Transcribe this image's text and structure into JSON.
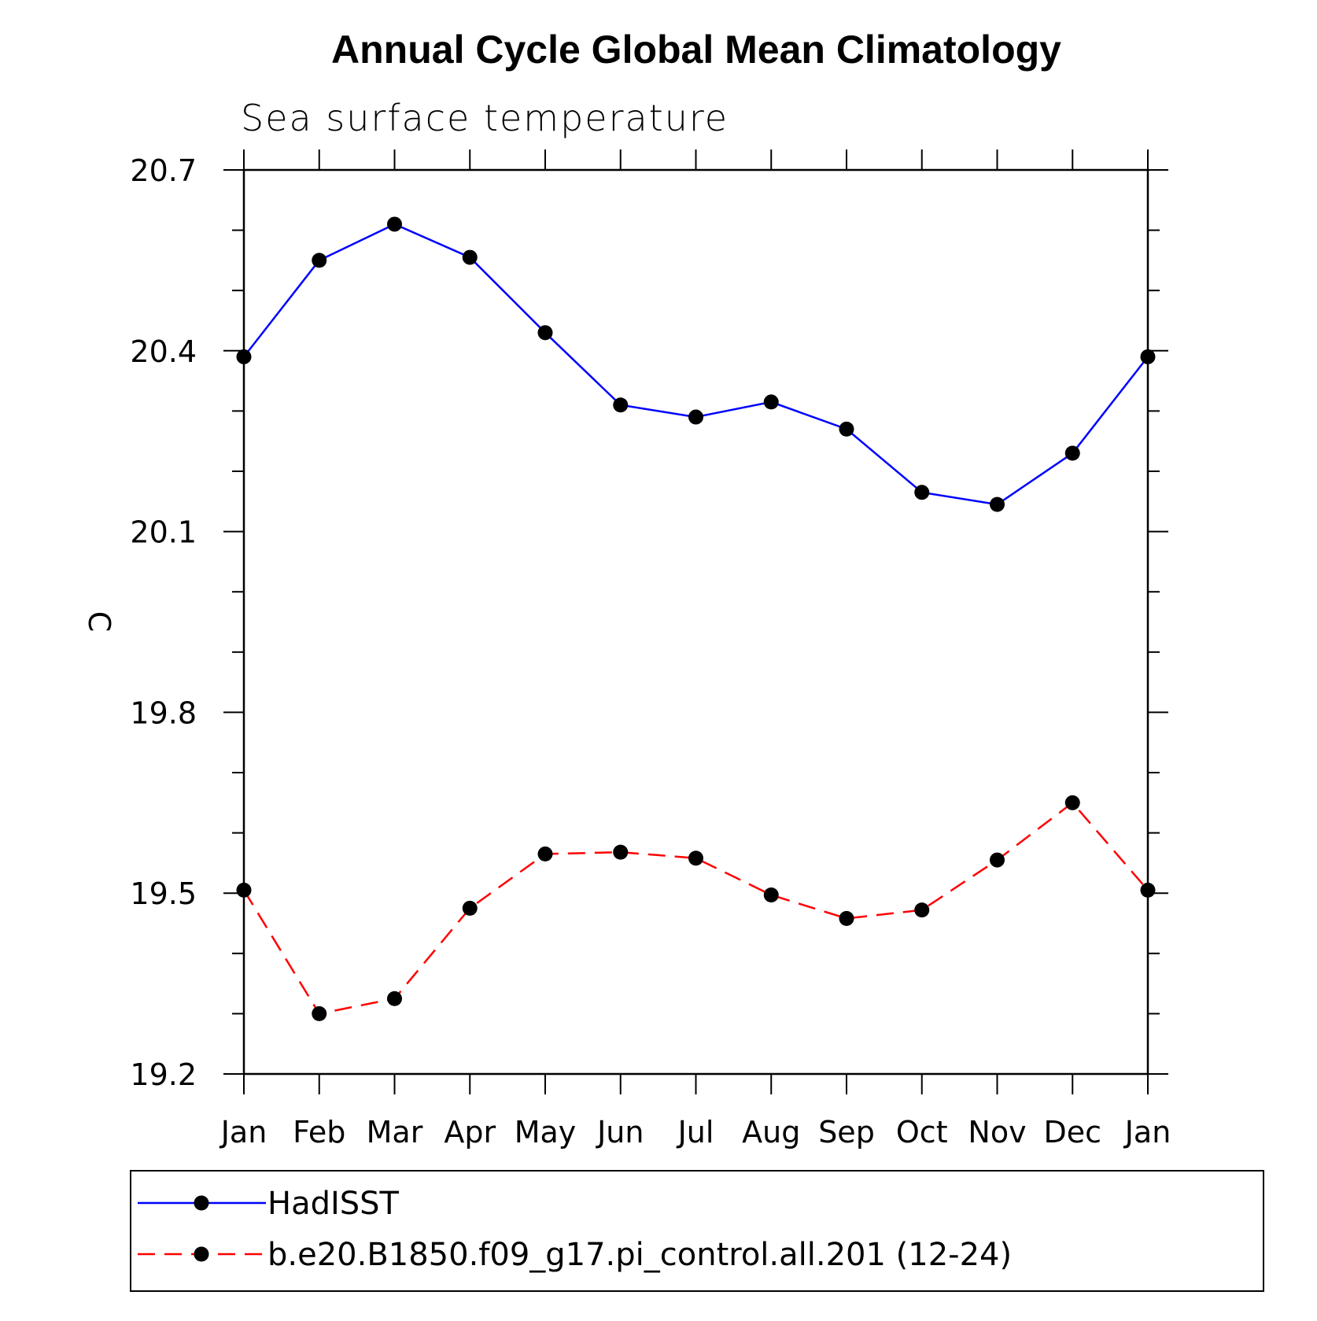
{
  "chart_data": {
    "type": "line",
    "title": "Annual Cycle Global Mean Climatology",
    "subtitle": "Sea surface temperature",
    "xlabel": "",
    "ylabel": "C",
    "categories": [
      "Jan",
      "Feb",
      "Mar",
      "Apr",
      "May",
      "Jun",
      "Jul",
      "Aug",
      "Sep",
      "Oct",
      "Nov",
      "Dec",
      "Jan"
    ],
    "ylim": [
      19.2,
      20.7
    ],
    "yticks": [
      "20.7",
      "20.4",
      "20.1",
      "19.8",
      "19.5",
      "19.2"
    ],
    "grid": false,
    "legend_position": "bottom",
    "series": [
      {
        "name": "HadISST",
        "color": "#0000ff",
        "dash": "solid",
        "marker": "filled-circle",
        "values": [
          20.39,
          20.55,
          20.61,
          20.555,
          20.43,
          20.31,
          20.29,
          20.315,
          20.27,
          20.165,
          20.145,
          20.23,
          20.39
        ]
      },
      {
        "name": "b.e20.B1850.f09_g17.pi_control.all.201 (12-24)",
        "color": "#ff0000",
        "dash": "dashed",
        "marker": "filled-circle",
        "values": [
          19.505,
          19.3,
          19.325,
          19.475,
          19.565,
          19.568,
          19.558,
          19.497,
          19.458,
          19.472,
          19.555,
          19.65,
          19.505
        ]
      }
    ]
  }
}
